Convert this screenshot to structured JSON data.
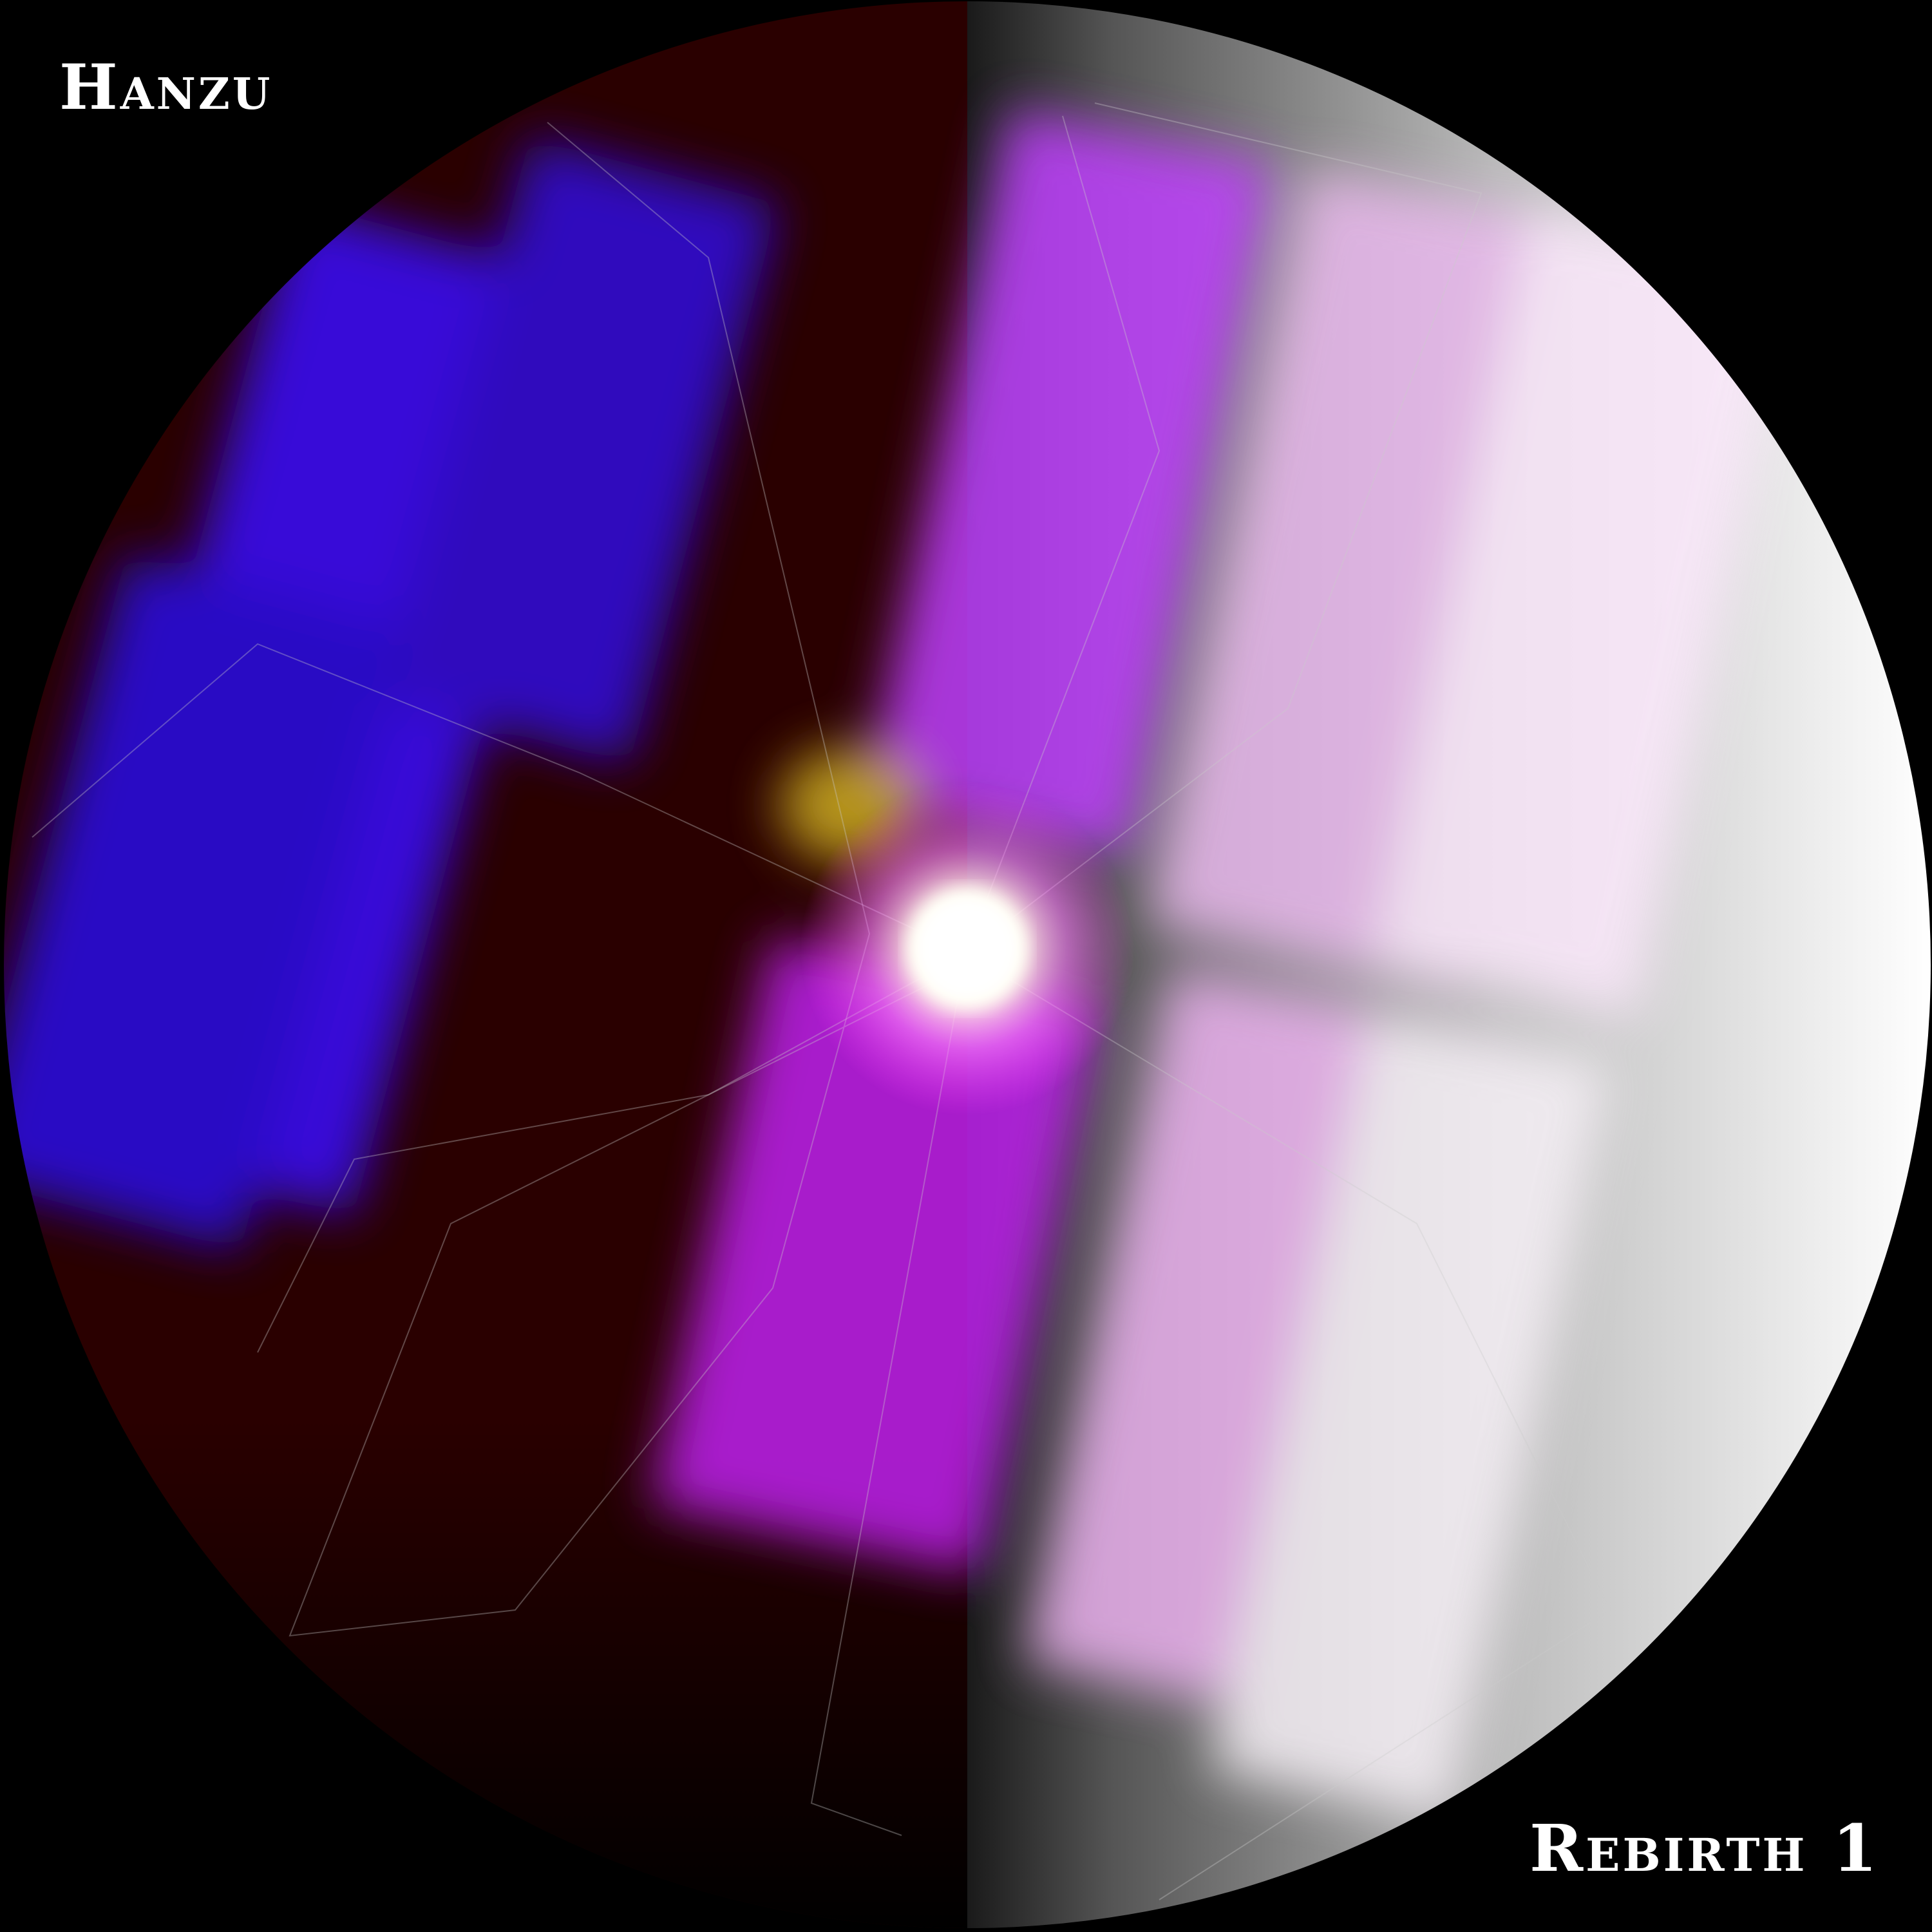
{
  "cover": {
    "artist": "Hanzu",
    "album": "Rebirth 1"
  },
  "colors": {
    "background": "#000000",
    "left_half": "#2a0000",
    "right_half_dark": "#2a2a2a",
    "right_half_light": "#ffffff",
    "fractal_blue": "#3a10ff",
    "fractal_magenta": "#d040ff",
    "fractal_pink_white": "#f4d8f4",
    "glow": "#fff8e0"
  }
}
